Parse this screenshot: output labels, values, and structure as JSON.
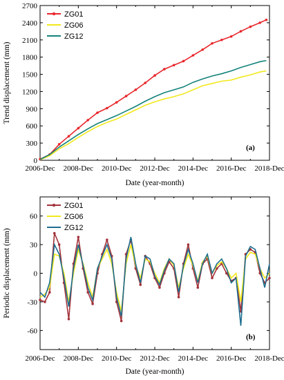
{
  "chart_data": [
    {
      "type": "line",
      "panel_label": "(a)",
      "xlabel": "Date (year-month)",
      "ylabel": "Trend displacement (mm)",
      "x_tick_labels": [
        "2006-Dec",
        "2008-Dec",
        "2010-Dec",
        "2012-Dec",
        "2014-Dec",
        "2016-Dec",
        "2018-Dec"
      ],
      "xlim": [
        "2006-12",
        "2018-12"
      ],
      "ylim": [
        0,
        2700
      ],
      "y_ticks": [
        0,
        300,
        600,
        900,
        1200,
        1500,
        1800,
        2100,
        2400,
        2700
      ],
      "legend_position": "top-left",
      "grid": false,
      "series": [
        {
          "name": "ZG01",
          "color": "#e8262b",
          "marker": "dot",
          "x": [
            "2006-12",
            "2007-06",
            "2007-12",
            "2008-06",
            "2008-12",
            "2009-06",
            "2009-12",
            "2010-06",
            "2010-12",
            "2011-06",
            "2011-12",
            "2012-06",
            "2012-12",
            "2013-06",
            "2013-12",
            "2014-06",
            "2014-12",
            "2015-06",
            "2015-12",
            "2016-06",
            "2016-12",
            "2017-06",
            "2017-12",
            "2018-06",
            "2018-10"
          ],
          "values": [
            20,
            100,
            280,
            420,
            560,
            700,
            830,
            910,
            1010,
            1120,
            1230,
            1350,
            1480,
            1590,
            1660,
            1730,
            1830,
            1930,
            2040,
            2100,
            2160,
            2250,
            2330,
            2400,
            2450
          ]
        },
        {
          "name": "ZG06",
          "color": "#f2e81c",
          "marker": "none",
          "x": [
            "2006-12",
            "2007-06",
            "2007-12",
            "2008-06",
            "2008-12",
            "2009-06",
            "2009-12",
            "2010-06",
            "2010-12",
            "2011-06",
            "2011-12",
            "2012-06",
            "2012-12",
            "2013-06",
            "2013-12",
            "2014-06",
            "2014-12",
            "2015-06",
            "2015-12",
            "2016-06",
            "2016-12",
            "2017-06",
            "2017-12",
            "2018-06",
            "2018-10"
          ],
          "values": [
            10,
            80,
            200,
            290,
            400,
            500,
            590,
            660,
            720,
            800,
            880,
            960,
            1020,
            1070,
            1110,
            1160,
            1230,
            1300,
            1340,
            1380,
            1400,
            1450,
            1490,
            1540,
            1560
          ]
        },
        {
          "name": "ZG12",
          "color": "#12827a",
          "marker": "none",
          "x": [
            "2006-12",
            "2007-06",
            "2007-12",
            "2008-06",
            "2008-12",
            "2009-06",
            "2009-12",
            "2010-06",
            "2010-12",
            "2011-06",
            "2011-12",
            "2012-06",
            "2012-12",
            "2013-06",
            "2013-12",
            "2014-06",
            "2014-12",
            "2015-06",
            "2015-12",
            "2016-06",
            "2016-12",
            "2017-06",
            "2017-12",
            "2018-06",
            "2018-10"
          ],
          "values": [
            15,
            100,
            230,
            340,
            450,
            550,
            640,
            710,
            780,
            860,
            940,
            1030,
            1110,
            1180,
            1230,
            1280,
            1360,
            1420,
            1470,
            1510,
            1560,
            1620,
            1670,
            1720,
            1740
          ]
        }
      ]
    },
    {
      "type": "line",
      "panel_label": "(b)",
      "xlabel": "Date (year-month)",
      "ylabel": "Periodic displacement (mm)",
      "x_tick_labels": [
        "2006-Dec",
        "2008-Dec",
        "2010-Dec",
        "2012-Dec",
        "2014-Dec",
        "2016-Dec",
        "2018-Dec"
      ],
      "xlim": [
        "2006-12",
        "2018-12"
      ],
      "ylim": [
        -80,
        80
      ],
      "y_ticks": [
        -60,
        -30,
        0,
        30,
        60
      ],
      "legend_position": "top-left",
      "grid": false,
      "series": [
        {
          "name": "ZG01",
          "color": "#a3323a",
          "marker": "dot",
          "x": [
            "2006-12",
            "2007-03",
            "2007-06",
            "2007-09",
            "2007-12",
            "2008-03",
            "2008-06",
            "2008-09",
            "2008-12",
            "2009-03",
            "2009-06",
            "2009-09",
            "2009-12",
            "2010-03",
            "2010-06",
            "2010-09",
            "2010-12",
            "2011-03",
            "2011-06",
            "2011-09",
            "2011-12",
            "2012-03",
            "2012-06",
            "2012-09",
            "2012-12",
            "2013-03",
            "2013-06",
            "2013-09",
            "2013-12",
            "2014-03",
            "2014-06",
            "2014-09",
            "2014-12",
            "2015-03",
            "2015-06",
            "2015-09",
            "2015-12",
            "2016-03",
            "2016-06",
            "2016-09",
            "2016-12",
            "2017-03",
            "2017-06",
            "2017-09",
            "2017-12",
            "2018-03",
            "2018-06",
            "2018-09",
            "2018-12"
          ],
          "values": [
            -28,
            -30,
            -20,
            42,
            30,
            -10,
            -48,
            10,
            38,
            5,
            -20,
            -32,
            0,
            20,
            35,
            18,
            -30,
            -50,
            20,
            35,
            5,
            -12,
            18,
            10,
            -5,
            -15,
            0,
            12,
            5,
            -25,
            10,
            30,
            5,
            -15,
            10,
            15,
            -5,
            5,
            10,
            0,
            -8,
            -5,
            -40,
            20,
            25,
            22,
            0,
            -10,
            -5
          ]
        },
        {
          "name": "ZG06",
          "color": "#f2e81c",
          "marker": "none",
          "x": [
            "2006-12",
            "2007-03",
            "2007-06",
            "2007-09",
            "2007-12",
            "2008-03",
            "2008-06",
            "2008-09",
            "2008-12",
            "2009-03",
            "2009-06",
            "2009-09",
            "2009-12",
            "2010-03",
            "2010-06",
            "2010-09",
            "2010-12",
            "2011-03",
            "2011-06",
            "2011-09",
            "2011-12",
            "2012-03",
            "2012-06",
            "2012-09",
            "2012-12",
            "2013-03",
            "2013-06",
            "2013-09",
            "2013-12",
            "2014-03",
            "2014-06",
            "2014-09",
            "2014-12",
            "2015-03",
            "2015-06",
            "2015-09",
            "2015-12",
            "2016-03",
            "2016-06",
            "2016-09",
            "2016-12",
            "2017-03",
            "2017-06",
            "2017-09",
            "2017-12",
            "2018-03",
            "2018-06",
            "2018-09",
            "2018-12"
          ],
          "values": [
            -25,
            -22,
            -15,
            20,
            18,
            0,
            -30,
            0,
            25,
            10,
            -10,
            -25,
            5,
            15,
            25,
            10,
            -20,
            -40,
            10,
            30,
            8,
            -5,
            15,
            12,
            0,
            -10,
            5,
            15,
            8,
            -15,
            5,
            20,
            8,
            -8,
            12,
            18,
            0,
            8,
            12,
            5,
            -5,
            0,
            -30,
            15,
            22,
            20,
            5,
            -5,
            0
          ]
        },
        {
          "name": "ZG12",
          "color": "#1d6e8f",
          "marker": "none",
          "x": [
            "2006-12",
            "2007-03",
            "2007-06",
            "2007-09",
            "2007-12",
            "2008-03",
            "2008-06",
            "2008-09",
            "2008-12",
            "2009-03",
            "2009-06",
            "2009-09",
            "2009-12",
            "2010-03",
            "2010-06",
            "2010-09",
            "2010-12",
            "2011-03",
            "2011-06",
            "2011-09",
            "2011-12",
            "2012-03",
            "2012-06",
            "2012-09",
            "2012-12",
            "2013-03",
            "2013-06",
            "2013-09",
            "2013-12",
            "2014-03",
            "2014-06",
            "2014-09",
            "2014-12",
            "2015-03",
            "2015-06",
            "2015-09",
            "2015-12",
            "2016-03",
            "2016-06",
            "2016-09",
            "2016-12",
            "2017-03",
            "2017-06",
            "2017-09",
            "2017-12",
            "2018-03",
            "2018-06",
            "2018-09",
            "2018-12"
          ],
          "values": [
            -20,
            -25,
            -10,
            30,
            20,
            -5,
            -35,
            5,
            30,
            8,
            -15,
            -28,
            5,
            18,
            30,
            15,
            -25,
            -45,
            15,
            38,
            10,
            -10,
            18,
            15,
            -3,
            -12,
            3,
            15,
            10,
            -20,
            8,
            25,
            10,
            -10,
            10,
            20,
            0,
            10,
            15,
            5,
            -10,
            -5,
            -55,
            18,
            28,
            25,
            5,
            -15,
            10
          ]
        }
      ]
    }
  ]
}
